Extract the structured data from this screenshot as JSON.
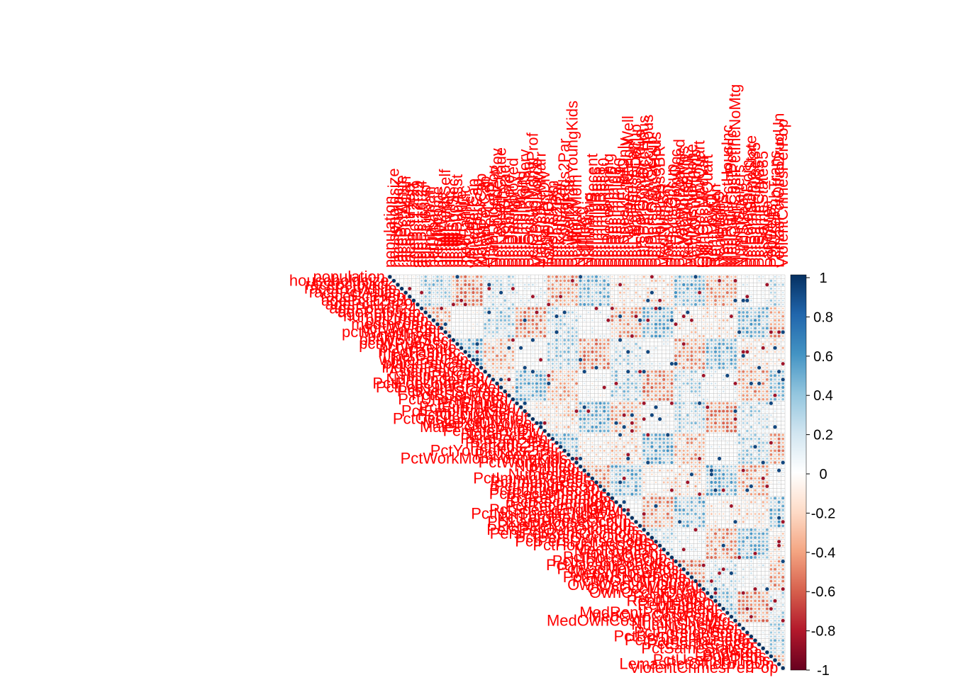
{
  "chart_data": {
    "type": "heatmap",
    "shape": "upper-triangle",
    "method": "circle",
    "variables": [
      "population",
      "householdsize",
      "racepctblack",
      "racePctWhite",
      "racePctAsian",
      "racePctHisp",
      "agePct12t21",
      "agePct12t29",
      "agePct16t24",
      "agePct65up",
      "numbUrban",
      "pctUrban",
      "medIncome",
      "pctWWage",
      "pctWFarmSelf",
      "pctWInvInc",
      "pctWSocSec",
      "pctWPubAsst",
      "pctWRetire",
      "medFamInc",
      "perCapInc",
      "whitePerCap",
      "blackPerCap",
      "indianPerCap",
      "AsianPerCap",
      "HispPerCap",
      "NumUnderPov",
      "PctPopUnderPov",
      "PctLess9thGrade",
      "PctNotHSGrad",
      "PctBSorMore",
      "PctUnemployed",
      "PctEmploy",
      "PctEmplManu",
      "PctEmplProfServ",
      "PctOccupManu",
      "PctOccupMgmtProf",
      "MalePctDivorce",
      "MalePctNevMarr",
      "FemalePctDiv",
      "TotalPctDiv",
      "PersPerFam",
      "PctFam2Par",
      "PctKids2Par",
      "PctYoungKids2Par",
      "PctTeen2Par",
      "PctWorkMomYoungKids",
      "PctWorkMom",
      "NumIlleg",
      "PctIlleg",
      "NumImmig",
      "PctImmigRecent",
      "PctImmigRec5",
      "PctImmigRec8",
      "PctImmigRec10",
      "PctRecentImmig",
      "PctRecImmig5",
      "PctRecImmig8",
      "PctRecImmig10",
      "PctSpeakEnglOnly",
      "PctNotSpeakEnglWell",
      "PctLargHouseFam",
      "PctLargHouseOccup",
      "PersPerOccupHous",
      "PersPerOwnOccHous",
      "PersPerRentOccHous",
      "PctPersOwnOccup",
      "PctPersDenseHous",
      "PctHousLess3BR",
      "MedNumBR",
      "HousVacant",
      "PctHousOccup",
      "PctHousOwnOcc",
      "PctVacantBoarded",
      "PctVacMore6Mos",
      "MedYrHousBuilt",
      "PctHousNoPhone",
      "PctWOFullPlumb",
      "OwnOccLowQuart",
      "OwnOccMedVal",
      "OwnOccHiQuart",
      "RentLowQ",
      "RentMedian",
      "RentHighQ",
      "MedRent",
      "MedRentPctHousInc",
      "MedOwnCostPctInc",
      "MedOwnCostPctIncNoMtg",
      "NumInShelters",
      "NumStreet",
      "PctForeignBorn",
      "PctBornSameState",
      "PctSameHouse85",
      "PctSameCity85",
      "PctSameState85",
      "LandArea",
      "PopDens",
      "PctUsePubTrans",
      "LemasPctOfficDrugUn",
      "ViolentCrimesPerPop"
    ],
    "legend_ticks": [
      "1",
      "0.8",
      "0.6",
      "0.4",
      "0.2",
      "0",
      "-0.2",
      "-0.4",
      "-0.6",
      "-0.8",
      "-1"
    ],
    "legend_range": [
      -1,
      1
    ],
    "colors": {
      "negative_end": "#67001F",
      "mid": "#FFFFFF",
      "positive_end": "#053061",
      "label": "#FF0000",
      "grid": "#BEBEBE"
    }
  }
}
